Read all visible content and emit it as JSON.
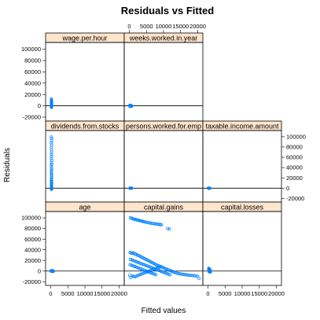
{
  "chart_data": {
    "type": "scatter",
    "title": "Residuals vs Fitted",
    "xlabel": "Fitted values",
    "ylabel": "Residuals",
    "xlim": [
      -1500,
      21500
    ],
    "ylim": [
      -27000,
      112000
    ],
    "x_ticks": [
      0,
      5000,
      10000,
      15000,
      20000
    ],
    "x_tick_labels": [
      "0",
      "5000",
      "10000",
      "15000",
      "20000"
    ],
    "y_ticks": [
      -20000,
      0,
      20000,
      40000,
      60000,
      80000,
      100000
    ],
    "y_tick_labels": [
      "-20000",
      "0",
      "20000",
      "40000",
      "60000",
      "80000",
      "100000"
    ],
    "reference_line": 0,
    "grid": false,
    "layout": {
      "columns": 3,
      "rows": 3
    },
    "panels": [
      {
        "label": "wage.per.hour",
        "points": [
          [
            200,
            12000
          ],
          [
            220,
            10500
          ],
          [
            180,
            9800
          ],
          [
            240,
            8500
          ],
          [
            210,
            7500
          ],
          [
            260,
            6500
          ],
          [
            230,
            5800
          ],
          [
            190,
            5000
          ],
          [
            250,
            4300
          ],
          [
            270,
            3600
          ],
          [
            215,
            2900
          ],
          [
            235,
            2200
          ],
          [
            205,
            1500
          ],
          [
            245,
            800
          ],
          [
            225,
            200
          ],
          [
            255,
            -500
          ],
          [
            195,
            -1000
          ],
          [
            265,
            -1500
          ],
          [
            210,
            -2200
          ],
          [
            240,
            -2800
          ]
        ]
      },
      {
        "label": "weeks.worked.in.year",
        "points": [
          [
            100,
            500
          ],
          [
            250,
            200
          ],
          [
            400,
            -200
          ],
          [
            550,
            -600
          ],
          [
            150,
            800
          ],
          [
            300,
            100
          ],
          [
            450,
            -400
          ],
          [
            600,
            -900
          ],
          [
            200,
            -1200
          ],
          [
            350,
            1000
          ],
          [
            500,
            300
          ],
          [
            700,
            -300
          ]
        ]
      },
      {
        "label": "dividends.from.stocks",
        "points": [
          [
            150,
            99500
          ],
          [
            300,
            96500
          ],
          [
            250,
            92000
          ],
          [
            200,
            88000
          ],
          [
            280,
            84000
          ],
          [
            180,
            79000
          ],
          [
            220,
            74500
          ],
          [
            260,
            70000
          ],
          [
            200,
            66000
          ],
          [
            240,
            62000
          ],
          [
            170,
            58000
          ],
          [
            290,
            54000
          ],
          [
            210,
            50000
          ],
          [
            250,
            46500
          ],
          [
            190,
            43000
          ],
          [
            230,
            39500
          ],
          [
            270,
            36000
          ],
          [
            180,
            33000
          ],
          [
            220,
            30000
          ],
          [
            260,
            27000
          ],
          [
            200,
            24500
          ],
          [
            240,
            22000
          ],
          [
            280,
            19500
          ],
          [
            190,
            17000
          ],
          [
            230,
            15000
          ],
          [
            250,
            13000
          ],
          [
            210,
            11000
          ],
          [
            270,
            9000
          ],
          [
            180,
            7500
          ],
          [
            220,
            6000
          ],
          [
            260,
            4500
          ],
          [
            200,
            3000
          ],
          [
            240,
            1800
          ],
          [
            280,
            800
          ],
          [
            190,
            0
          ],
          [
            230,
            -500
          ],
          [
            250,
            -1000
          ],
          [
            210,
            -1400
          ],
          [
            270,
            -1800
          ],
          [
            220,
            -2200
          ]
        ]
      },
      {
        "label": "persons.worked.for.emp",
        "points": [
          [
            200,
            0
          ],
          [
            350,
            300
          ],
          [
            500,
            -400
          ],
          [
            650,
            200
          ]
        ]
      },
      {
        "label": "taxable.income.amount",
        "points": [
          [
            100,
            200
          ],
          [
            250,
            -300
          ],
          [
            400,
            150
          ],
          [
            550,
            -100
          ]
        ]
      },
      {
        "label": "age",
        "points": [
          [
            50,
            500
          ],
          [
            200,
            -400
          ],
          [
            350,
            900
          ],
          [
            500,
            -900
          ],
          [
            650,
            200
          ],
          [
            800,
            -300
          ]
        ]
      },
      {
        "label": "capital.gains",
        "points": [
          [
            300,
            100500
          ],
          [
            600,
            99500
          ],
          [
            900,
            98500
          ],
          [
            1200,
            98000
          ],
          [
            1500,
            97500
          ],
          [
            1800,
            97000
          ],
          [
            2100,
            96500
          ],
          [
            2400,
            96000
          ],
          [
            2700,
            95500
          ],
          [
            3000,
            95000
          ],
          [
            3300,
            94500
          ],
          [
            3600,
            94000
          ],
          [
            3900,
            93500
          ],
          [
            4200,
            93000
          ],
          [
            4500,
            92500
          ],
          [
            4800,
            92000
          ],
          [
            5200,
            91500
          ],
          [
            5600,
            91000
          ],
          [
            6000,
            90500
          ],
          [
            6400,
            90000
          ],
          [
            6800,
            89600
          ],
          [
            7200,
            89200
          ],
          [
            7600,
            88800
          ],
          [
            8000,
            88400
          ],
          [
            8400,
            88000
          ],
          [
            8800,
            87600
          ],
          [
            9100,
            87300
          ],
          [
            9400,
            87000
          ],
          [
            11200,
            80000
          ],
          [
            11700,
            79000
          ],
          [
            200,
            35000
          ],
          [
            500,
            34000
          ],
          [
            800,
            33500
          ],
          [
            1100,
            34500
          ],
          [
            1400,
            33000
          ],
          [
            1700,
            32000
          ],
          [
            2000,
            31500
          ],
          [
            2300,
            30000
          ],
          [
            2600,
            29500
          ],
          [
            2900,
            28800
          ],
          [
            3200,
            27500
          ],
          [
            3500,
            26500
          ],
          [
            3800,
            25500
          ],
          [
            4100,
            24500
          ],
          [
            4400,
            23500
          ],
          [
            4700,
            22500
          ],
          [
            5000,
            21500
          ],
          [
            5300,
            20500
          ],
          [
            5600,
            19500
          ],
          [
            5900,
            18500
          ],
          [
            6200,
            17500
          ],
          [
            6500,
            16500
          ],
          [
            6800,
            15500
          ],
          [
            7100,
            14500
          ],
          [
            7400,
            13500
          ],
          [
            7700,
            12500
          ],
          [
            8000,
            11500
          ],
          [
            8300,
            10500
          ],
          [
            8600,
            9800
          ],
          [
            8900,
            9000
          ],
          [
            9200,
            8200
          ],
          [
            9500,
            7400
          ],
          [
            9800,
            6600
          ],
          [
            10100,
            5800
          ],
          [
            10400,
            5000
          ],
          [
            10700,
            4200
          ],
          [
            11000,
            3400
          ],
          [
            11300,
            2600
          ],
          [
            11600,
            1800
          ],
          [
            11900,
            1000
          ],
          [
            12200,
            300
          ],
          [
            12500,
            -500
          ],
          [
            12800,
            -1300
          ],
          [
            13100,
            -2000
          ],
          [
            13400,
            -2700
          ],
          [
            13700,
            -3400
          ],
          [
            14000,
            -4000
          ],
          [
            14400,
            -4600
          ],
          [
            14800,
            -5200
          ],
          [
            15200,
            -5600
          ],
          [
            15600,
            -6000
          ],
          [
            16000,
            -6400
          ],
          [
            16400,
            -6800
          ],
          [
            16800,
            -7200
          ],
          [
            17200,
            -7500
          ],
          [
            17600,
            -7800
          ],
          [
            18000,
            -8100
          ],
          [
            18500,
            -8400
          ],
          [
            19000,
            -8700
          ],
          [
            19500,
            -9000
          ],
          [
            20000,
            -10000
          ],
          [
            20400,
            -14000
          ],
          [
            300,
            22000
          ],
          [
            700,
            21000
          ],
          [
            1100,
            20000
          ],
          [
            1500,
            19000
          ],
          [
            1900,
            18000
          ],
          [
            2300,
            17000
          ],
          [
            2700,
            16000
          ],
          [
            3100,
            15000
          ],
          [
            3500,
            14000
          ],
          [
            3900,
            13000
          ],
          [
            4300,
            12000
          ],
          [
            4700,
            11000
          ],
          [
            5100,
            10000
          ],
          [
            5500,
            9000
          ],
          [
            5900,
            8000
          ],
          [
            6300,
            7000
          ],
          [
            6700,
            6000
          ],
          [
            7100,
            5000
          ],
          [
            7500,
            4000
          ],
          [
            7900,
            3000
          ],
          [
            8300,
            2000
          ],
          [
            8700,
            1000
          ],
          [
            9100,
            0
          ],
          [
            9500,
            -1000
          ],
          [
            9900,
            -2000
          ],
          [
            10300,
            -3000
          ],
          [
            10700,
            -4000
          ],
          [
            11100,
            -5000
          ],
          [
            11500,
            -6000
          ],
          [
            11900,
            -7000
          ],
          [
            200,
            12000
          ],
          [
            600,
            11000
          ],
          [
            1000,
            10000
          ],
          [
            1400,
            9000
          ],
          [
            1800,
            8000
          ],
          [
            2200,
            7000
          ],
          [
            2600,
            6000
          ],
          [
            3000,
            5000
          ],
          [
            3400,
            4000
          ],
          [
            3800,
            3000
          ],
          [
            4200,
            2000
          ],
          [
            4600,
            1000
          ],
          [
            5000,
            0
          ],
          [
            5400,
            -1000
          ],
          [
            5800,
            -2000
          ],
          [
            6200,
            -3000
          ],
          [
            6600,
            -4000
          ],
          [
            7000,
            -5000
          ],
          [
            7400,
            -6000
          ],
          [
            7800,
            -7000
          ],
          [
            100,
            -8000
          ],
          [
            400,
            -12000
          ],
          [
            800,
            -9000
          ],
          [
            1200,
            -10000
          ],
          [
            1600,
            -11000
          ],
          [
            2000,
            -9500
          ],
          [
            2400,
            -8500
          ],
          [
            2800,
            -7500
          ],
          [
            3200,
            -6500
          ],
          [
            3600,
            -5500
          ],
          [
            4000,
            -4500
          ],
          [
            4400,
            -3500
          ],
          [
            4800,
            -2500
          ],
          [
            5200,
            -1500
          ],
          [
            5600,
            -500
          ],
          [
            6000,
            500
          ],
          [
            6400,
            1500
          ],
          [
            6800,
            2500
          ],
          [
            7200,
            3500
          ],
          [
            7600,
            4500
          ],
          [
            8000,
            5500
          ],
          [
            8400,
            6500
          ],
          [
            8800,
            7500
          ],
          [
            9200,
            8500
          ]
        ]
      },
      {
        "label": "capital.losses",
        "points": [
          [
            200,
            5000
          ],
          [
            350,
            4000
          ],
          [
            500,
            3000
          ],
          [
            650,
            2000
          ],
          [
            250,
            1000
          ],
          [
            400,
            0
          ],
          [
            550,
            -1000
          ],
          [
            700,
            -1800
          ],
          [
            300,
            4500
          ],
          [
            450,
            3500
          ],
          [
            600,
            2500
          ],
          [
            300,
            1500
          ],
          [
            450,
            500
          ],
          [
            600,
            -500
          ],
          [
            350,
            -1400
          ]
        ]
      }
    ]
  }
}
